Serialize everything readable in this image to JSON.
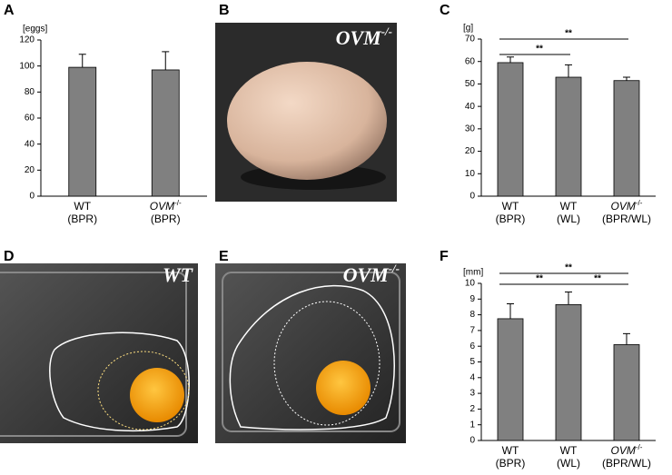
{
  "panels": [
    "A",
    "B",
    "C",
    "D",
    "E",
    "F"
  ],
  "photos": [
    {
      "label": "OVM",
      "sup": "-/-"
    },
    {
      "label": "WT"
    },
    {
      "label": "OVM",
      "sup": "-/-"
    }
  ],
  "chart_data": [
    {
      "type": "bar",
      "y_label": "[eggs]",
      "categories": [
        {
          "label": "WT",
          "sub": "(BPR)"
        },
        {
          "label": "OVM",
          "sup": "-/-",
          "sub": "(BPR)"
        }
      ],
      "values": [
        99,
        97
      ],
      "errors": [
        10,
        14
      ],
      "color": "#808080",
      "ylim": [
        0,
        120
      ],
      "yticks": [
        0,
        20,
        40,
        60,
        80,
        100,
        120
      ]
    },
    {
      "type": "bar",
      "y_label": "[g]",
      "categories": [
        {
          "label": "WT",
          "sub": "(BPR)"
        },
        {
          "label": "WT",
          "sub": "(WL)"
        },
        {
          "label": "OVM",
          "sup": "-/-",
          "sub": "(BPR/WL)"
        }
      ],
      "values": [
        59.5,
        53,
        51.5
      ],
      "errors": [
        2.5,
        5.5,
        1.5
      ],
      "color": "#808080",
      "ylim": [
        0,
        70
      ],
      "yticks": [
        0,
        10,
        20,
        30,
        40,
        50,
        60,
        70
      ],
      "comparisons": [
        {
          "pair": [
            0,
            1
          ],
          "label": "**"
        },
        {
          "pair": [
            0,
            2
          ],
          "label": "**"
        }
      ]
    },
    {
      "type": "bar",
      "y_label": "[mm]",
      "categories": [
        {
          "label": "WT",
          "sub": "(BPR)"
        },
        {
          "label": "WT",
          "sub": "(WL)"
        },
        {
          "label": "OVM",
          "sup": "-/-",
          "sub": "(BPR/WL)"
        }
      ],
      "values": [
        7.75,
        8.65,
        6.1
      ],
      "errors": [
        0.95,
        0.8,
        0.7
      ],
      "color": "#808080",
      "ylim": [
        0,
        10
      ],
      "yticks": [
        0,
        1,
        2,
        3,
        4,
        5,
        6,
        7,
        8,
        9,
        10
      ],
      "comparisons": [
        {
          "pair": [
            0,
            2
          ],
          "label": "**"
        },
        {
          "pair": [
            0,
            1
          ],
          "label": "**"
        },
        {
          "pair": [
            1,
            2
          ],
          "label": "**"
        }
      ]
    }
  ]
}
